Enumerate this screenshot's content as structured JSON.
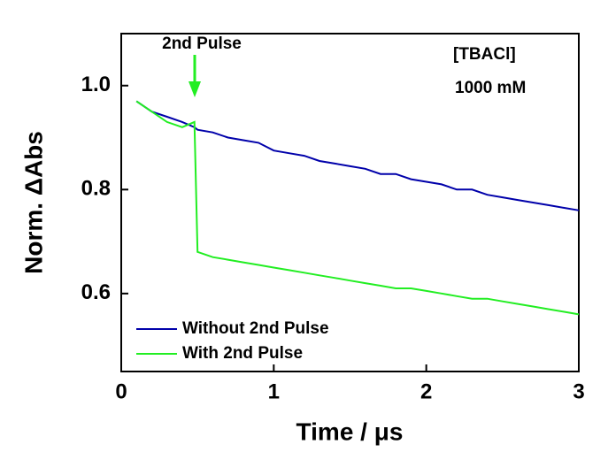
{
  "chart_data": {
    "type": "line",
    "x_label": "Time / μs",
    "y_label": "Norm. ΔAbs",
    "annotations": [
      "2nd Pulse",
      "[TBACl]",
      "1000 mM"
    ],
    "x": [
      0.1,
      0.2,
      0.3,
      0.4,
      0.48,
      0.5,
      0.6,
      0.7,
      0.8,
      0.9,
      1.0,
      1.1,
      1.2,
      1.3,
      1.4,
      1.5,
      1.6,
      1.7,
      1.8,
      1.9,
      2.0,
      2.1,
      2.2,
      2.3,
      2.4,
      2.5,
      2.6,
      2.7,
      2.8,
      2.9,
      3.0
    ],
    "series": [
      {
        "name": "Without 2nd Pulse",
        "color": "#0000aa",
        "values": [
          0.97,
          0.95,
          0.94,
          0.93,
          0.92,
          0.915,
          0.91,
          0.9,
          0.895,
          0.89,
          0.875,
          0.87,
          0.865,
          0.855,
          0.85,
          0.845,
          0.84,
          0.83,
          0.83,
          0.82,
          0.815,
          0.81,
          0.8,
          0.8,
          0.79,
          0.785,
          0.78,
          0.775,
          0.77,
          0.765,
          0.76
        ]
      },
      {
        "name": "With 2nd Pulse",
        "color": "#22ee22",
        "values": [
          0.97,
          0.95,
          0.93,
          0.92,
          0.93,
          0.68,
          0.67,
          0.665,
          0.66,
          0.655,
          0.65,
          0.645,
          0.64,
          0.635,
          0.63,
          0.625,
          0.62,
          0.615,
          0.61,
          0.61,
          0.605,
          0.6,
          0.595,
          0.59,
          0.59,
          0.585,
          0.58,
          0.575,
          0.57,
          0.565,
          0.56
        ]
      }
    ],
    "xlim": [
      0,
      3
    ],
    "xticks": [
      0,
      1,
      2,
      3
    ],
    "ylim": [
      0.45,
      1.1
    ],
    "yticks": [
      0.6,
      0.8,
      {
        "value": 1,
        "label": "1.0"
      }
    ],
    "legend": "lower-left"
  }
}
